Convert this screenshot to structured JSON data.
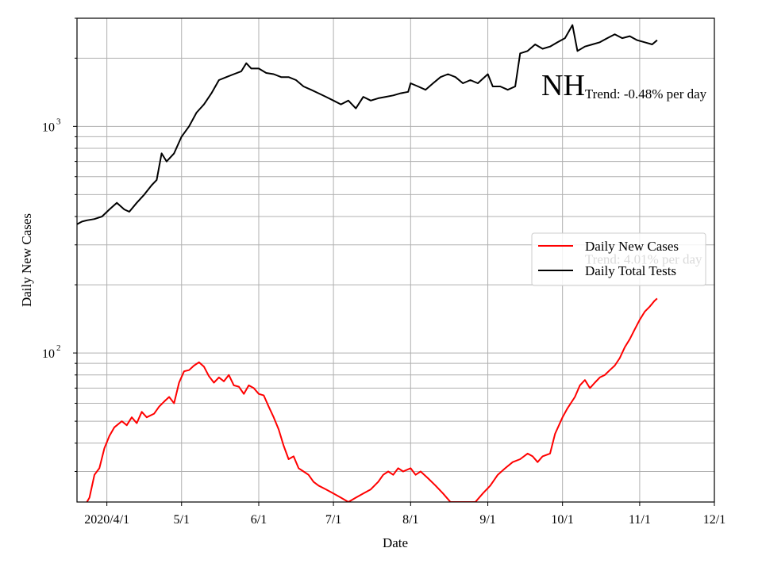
{
  "chart_data": {
    "type": "line",
    "title": "",
    "annotation_label": "NH",
    "xlabel": "Date",
    "ylabel": "Daily New Cases",
    "yscale": "log",
    "ylim": [
      22,
      3000
    ],
    "xlim": [
      "2020-03-20",
      "2020-12-01"
    ],
    "grid": true,
    "grid_minor_y": true,
    "legend_placement": "center-right",
    "x_ticks": [
      {
        "date": "2020-04-01",
        "label": "2020/4/1"
      },
      {
        "date": "2020-05-01",
        "label": "5/1"
      },
      {
        "date": "2020-06-01",
        "label": "6/1"
      },
      {
        "date": "2020-07-01",
        "label": "7/1"
      },
      {
        "date": "2020-08-01",
        "label": "8/1"
      },
      {
        "date": "2020-09-01",
        "label": "9/1"
      },
      {
        "date": "2020-10-01",
        "label": "10/1"
      },
      {
        "date": "2020-11-01",
        "label": "11/1"
      },
      {
        "date": "2020-12-01",
        "label": "12/1"
      }
    ],
    "y_ticks": [
      {
        "value": 100,
        "base": "10",
        "exp": "2"
      },
      {
        "value": 1000,
        "base": "10",
        "exp": "3"
      }
    ],
    "trend_labels": [
      {
        "text": "Trend: -0.48% per day",
        "series": "Daily Total Tests",
        "date": "2020-10-10",
        "value": 1330
      },
      {
        "text": "Trend: 4.01% per day",
        "series": "Daily New Cases",
        "date": "2020-10-10",
        "value": 248
      }
    ],
    "series": [
      {
        "name": "Daily New Cases",
        "color": "#ff0000",
        "points": [
          [
            "2020-03-24",
            22
          ],
          [
            "2020-03-25",
            23
          ],
          [
            "2020-03-27",
            29
          ],
          [
            "2020-03-29",
            31
          ],
          [
            "2020-03-31",
            38
          ],
          [
            "2020-04-02",
            43
          ],
          [
            "2020-04-04",
            47
          ],
          [
            "2020-04-07",
            50
          ],
          [
            "2020-04-09",
            48
          ],
          [
            "2020-04-11",
            52
          ],
          [
            "2020-04-13",
            49
          ],
          [
            "2020-04-15",
            55
          ],
          [
            "2020-04-17",
            52
          ],
          [
            "2020-04-20",
            54
          ],
          [
            "2020-04-22",
            58
          ],
          [
            "2020-04-24",
            61
          ],
          [
            "2020-04-26",
            64
          ],
          [
            "2020-04-28",
            60
          ],
          [
            "2020-04-30",
            74
          ],
          [
            "2020-05-02",
            83
          ],
          [
            "2020-05-04",
            84
          ],
          [
            "2020-05-06",
            88
          ],
          [
            "2020-05-08",
            91
          ],
          [
            "2020-05-10",
            87
          ],
          [
            "2020-05-12",
            79
          ],
          [
            "2020-05-14",
            74
          ],
          [
            "2020-05-16",
            78
          ],
          [
            "2020-05-18",
            75
          ],
          [
            "2020-05-20",
            80
          ],
          [
            "2020-05-22",
            72
          ],
          [
            "2020-05-24",
            71
          ],
          [
            "2020-05-26",
            66
          ],
          [
            "2020-05-28",
            72
          ],
          [
            "2020-05-30",
            70
          ],
          [
            "2020-06-01",
            66
          ],
          [
            "2020-06-03",
            65
          ],
          [
            "2020-06-05",
            58
          ],
          [
            "2020-06-07",
            52
          ],
          [
            "2020-06-09",
            46
          ],
          [
            "2020-06-11",
            39
          ],
          [
            "2020-06-13",
            34
          ],
          [
            "2020-06-15",
            35
          ],
          [
            "2020-06-17",
            31
          ],
          [
            "2020-06-19",
            30
          ],
          [
            "2020-06-21",
            29
          ],
          [
            "2020-06-23",
            27
          ],
          [
            "2020-06-25",
            26
          ],
          [
            "2020-06-28",
            25
          ],
          [
            "2020-07-01",
            24
          ],
          [
            "2020-07-04",
            23
          ],
          [
            "2020-07-07",
            22
          ],
          [
            "2020-07-10",
            23
          ],
          [
            "2020-07-13",
            24
          ],
          [
            "2020-07-16",
            25
          ],
          [
            "2020-07-19",
            27
          ],
          [
            "2020-07-21",
            29
          ],
          [
            "2020-07-23",
            30
          ],
          [
            "2020-07-25",
            29
          ],
          [
            "2020-07-27",
            31
          ],
          [
            "2020-07-29",
            30
          ],
          [
            "2020-08-01",
            31
          ],
          [
            "2020-08-03",
            29
          ],
          [
            "2020-08-05",
            30
          ],
          [
            "2020-08-08",
            28
          ],
          [
            "2020-08-11",
            26
          ],
          [
            "2020-08-14",
            24
          ],
          [
            "2020-08-17",
            22
          ],
          [
            "2020-08-20",
            22
          ],
          [
            "2020-08-23",
            22
          ],
          [
            "2020-08-27",
            22
          ],
          [
            "2020-08-30",
            24
          ],
          [
            "2020-09-02",
            26
          ],
          [
            "2020-09-05",
            29
          ],
          [
            "2020-09-08",
            31
          ],
          [
            "2020-09-11",
            33
          ],
          [
            "2020-09-14",
            34
          ],
          [
            "2020-09-17",
            36
          ],
          [
            "2020-09-19",
            35
          ],
          [
            "2020-09-21",
            33
          ],
          [
            "2020-09-23",
            35
          ],
          [
            "2020-09-26",
            36
          ],
          [
            "2020-09-28",
            44
          ],
          [
            "2020-10-01",
            52
          ],
          [
            "2020-10-03",
            57
          ],
          [
            "2020-10-06",
            64
          ],
          [
            "2020-10-08",
            72
          ],
          [
            "2020-10-10",
            76
          ],
          [
            "2020-10-12",
            70
          ],
          [
            "2020-10-14",
            74
          ],
          [
            "2020-10-16",
            78
          ],
          [
            "2020-10-18",
            80
          ],
          [
            "2020-10-20",
            84
          ],
          [
            "2020-10-22",
            88
          ],
          [
            "2020-10-24",
            95
          ],
          [
            "2020-10-26",
            106
          ],
          [
            "2020-10-28",
            115
          ],
          [
            "2020-10-30",
            127
          ],
          [
            "2020-11-01",
            140
          ],
          [
            "2020-11-03",
            152
          ],
          [
            "2020-11-05",
            160
          ],
          [
            "2020-11-07",
            170
          ],
          [
            "2020-11-08",
            174
          ]
        ]
      },
      {
        "name": "Daily Total Tests",
        "color": "#000000",
        "points": [
          [
            "2020-03-20",
            370
          ],
          [
            "2020-03-22",
            380
          ],
          [
            "2020-03-24",
            385
          ],
          [
            "2020-03-27",
            390
          ],
          [
            "2020-03-30",
            400
          ],
          [
            "2020-04-02",
            430
          ],
          [
            "2020-04-05",
            460
          ],
          [
            "2020-04-08",
            430
          ],
          [
            "2020-04-10",
            420
          ],
          [
            "2020-04-13",
            460
          ],
          [
            "2020-04-16",
            500
          ],
          [
            "2020-04-19",
            550
          ],
          [
            "2020-04-21",
            580
          ],
          [
            "2020-04-23",
            760
          ],
          [
            "2020-04-25",
            700
          ],
          [
            "2020-04-28",
            760
          ],
          [
            "2020-05-01",
            900
          ],
          [
            "2020-05-04",
            1000
          ],
          [
            "2020-05-07",
            1150
          ],
          [
            "2020-05-10",
            1250
          ],
          [
            "2020-05-13",
            1400
          ],
          [
            "2020-05-16",
            1600
          ],
          [
            "2020-05-19",
            1650
          ],
          [
            "2020-05-22",
            1700
          ],
          [
            "2020-05-25",
            1750
          ],
          [
            "2020-05-27",
            1900
          ],
          [
            "2020-05-29",
            1800
          ],
          [
            "2020-06-01",
            1800
          ],
          [
            "2020-06-04",
            1720
          ],
          [
            "2020-06-07",
            1700
          ],
          [
            "2020-06-10",
            1650
          ],
          [
            "2020-06-13",
            1650
          ],
          [
            "2020-06-16",
            1600
          ],
          [
            "2020-06-19",
            1500
          ],
          [
            "2020-06-22",
            1450
          ],
          [
            "2020-06-25",
            1400
          ],
          [
            "2020-06-28",
            1350
          ],
          [
            "2020-07-01",
            1300
          ],
          [
            "2020-07-04",
            1250
          ],
          [
            "2020-07-07",
            1300
          ],
          [
            "2020-07-10",
            1200
          ],
          [
            "2020-07-13",
            1350
          ],
          [
            "2020-07-16",
            1300
          ],
          [
            "2020-07-19",
            1330
          ],
          [
            "2020-07-22",
            1350
          ],
          [
            "2020-07-25",
            1370
          ],
          [
            "2020-07-28",
            1400
          ],
          [
            "2020-07-31",
            1420
          ],
          [
            "2020-08-01",
            1550
          ],
          [
            "2020-08-04",
            1500
          ],
          [
            "2020-08-07",
            1450
          ],
          [
            "2020-08-10",
            1550
          ],
          [
            "2020-08-13",
            1650
          ],
          [
            "2020-08-16",
            1700
          ],
          [
            "2020-08-19",
            1650
          ],
          [
            "2020-08-22",
            1550
          ],
          [
            "2020-08-25",
            1600
          ],
          [
            "2020-08-28",
            1550
          ],
          [
            "2020-09-01",
            1700
          ],
          [
            "2020-09-03",
            1500
          ],
          [
            "2020-09-06",
            1500
          ],
          [
            "2020-09-09",
            1450
          ],
          [
            "2020-09-12",
            1500
          ],
          [
            "2020-09-14",
            2100
          ],
          [
            "2020-09-17",
            2150
          ],
          [
            "2020-09-20",
            2300
          ],
          [
            "2020-09-23",
            2200
          ],
          [
            "2020-09-26",
            2250
          ],
          [
            "2020-09-29",
            2350
          ],
          [
            "2020-10-02",
            2450
          ],
          [
            "2020-10-05",
            2800
          ],
          [
            "2020-10-07",
            2150
          ],
          [
            "2020-10-10",
            2250
          ],
          [
            "2020-10-13",
            2300
          ],
          [
            "2020-10-16",
            2350
          ],
          [
            "2020-10-19",
            2450
          ],
          [
            "2020-10-22",
            2550
          ],
          [
            "2020-10-25",
            2450
          ],
          [
            "2020-10-28",
            2500
          ],
          [
            "2020-10-31",
            2400
          ],
          [
            "2020-11-03",
            2350
          ],
          [
            "2020-11-06",
            2300
          ],
          [
            "2020-11-08",
            2400
          ]
        ]
      }
    ]
  }
}
